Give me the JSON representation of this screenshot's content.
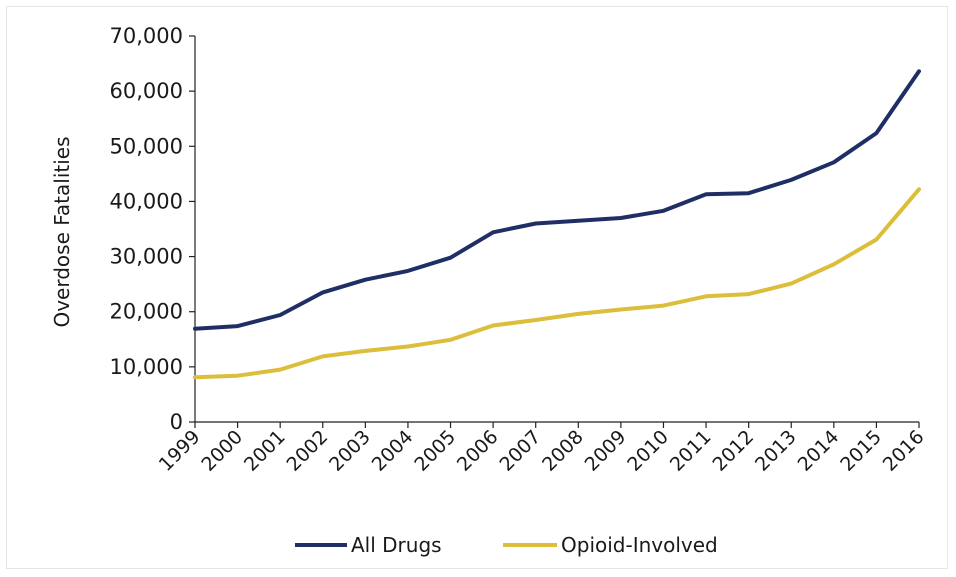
{
  "chart_data": {
    "type": "line",
    "title": "",
    "xlabel": "",
    "ylabel": "Overdose Fatalities",
    "ylim": [
      0,
      70000
    ],
    "yticks": [
      0,
      10000,
      20000,
      30000,
      40000,
      50000,
      60000,
      70000
    ],
    "ytick_labels": [
      "0",
      "10,000",
      "20,000",
      "30,000",
      "40,000",
      "50,000",
      "60,000",
      "70,000"
    ],
    "x": [
      "1999",
      "2000",
      "2001",
      "2002",
      "2003",
      "2004",
      "2005",
      "2006",
      "2007",
      "2008",
      "2009",
      "2010",
      "2011",
      "2012",
      "2013",
      "2014",
      "2015",
      "2016"
    ],
    "grid": false,
    "legend_position": "bottom",
    "series": [
      {
        "name": "All Drugs",
        "color": "#1f2f66",
        "values": [
          16900,
          17400,
          19400,
          23500,
          25800,
          27400,
          29800,
          34400,
          36000,
          36500,
          37000,
          38300,
          41300,
          41500,
          43900,
          47100,
          52400,
          63600
        ]
      },
      {
        "name": "Opioid-Involved",
        "color": "#dcbe3a",
        "values": [
          8100,
          8400,
          9500,
          11900,
          12900,
          13700,
          14900,
          17500,
          18500,
          19600,
          20400,
          21100,
          22800,
          23200,
          25100,
          28600,
          33100,
          42200
        ]
      }
    ]
  }
}
